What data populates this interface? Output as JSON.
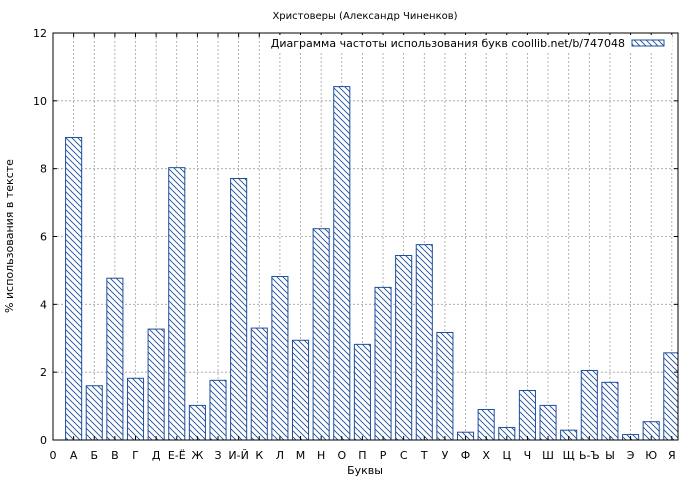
{
  "chart_data": {
    "type": "bar",
    "title": "Христоверы (Александр Чиненков)",
    "xlabel": "Буквы",
    "ylabel": "% использования в тексте",
    "legend": "Диаграмма частоты использования букв coollib.net/b/747048",
    "legend_position": "top-right",
    "grid": true,
    "ylim": [
      0,
      12
    ],
    "yticks": [
      0,
      2,
      4,
      6,
      8,
      10,
      12
    ],
    "x_origin_label": "0",
    "categories": [
      "А",
      "Б",
      "В",
      "Г",
      "Д",
      "Е-Ё",
      "Ж",
      "З",
      "И-Й",
      "К",
      "Л",
      "М",
      "Н",
      "О",
      "П",
      "Р",
      "С",
      "Т",
      "У",
      "Ф",
      "Х",
      "Ц",
      "Ч",
      "Ш",
      "Щ",
      "Ь-Ъ",
      "Ы",
      "Э",
      "Ю",
      "Я"
    ],
    "values": [
      8.92,
      1.6,
      4.77,
      1.82,
      3.27,
      8.03,
      1.02,
      1.76,
      7.71,
      3.3,
      4.82,
      2.94,
      6.23,
      10.42,
      2.82,
      4.5,
      5.44,
      5.76,
      3.17,
      0.23,
      0.9,
      0.37,
      1.46,
      1.02,
      0.29,
      2.05,
      1.7,
      0.16,
      0.54,
      2.57
    ],
    "colors": {
      "bar_stroke": "#1f4e9c",
      "hatch": "#1f4e9c",
      "grid": "#a0a0a0",
      "axis": "#000000"
    }
  }
}
